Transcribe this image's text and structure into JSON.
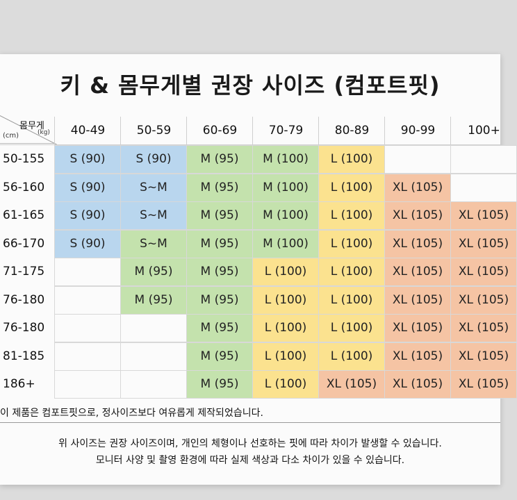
{
  "title": "키 & 몸무게별 권장 사이즈 (컴포트핏)",
  "corner": {
    "weight_label": "몸무게",
    "weight_unit": "(kg)",
    "height_unit": "(cm)"
  },
  "columns": [
    "40-49",
    "50-59",
    "60-69",
    "70-79",
    "80-89",
    "90-99",
    "100+"
  ],
  "rows": [
    {
      "height": "50-155",
      "cells": [
        {
          "text": "S (90)",
          "color": "blue"
        },
        {
          "text": "S (90)",
          "color": "blue"
        },
        {
          "text": "M (95)",
          "color": "green"
        },
        {
          "text": "M (100)",
          "color": "green"
        },
        {
          "text": "L (100)",
          "color": "yellow"
        },
        {
          "text": "",
          "color": "empty"
        },
        {
          "text": "",
          "color": "empty"
        }
      ]
    },
    {
      "height": "56-160",
      "cells": [
        {
          "text": "S (90)",
          "color": "blue"
        },
        {
          "text": "S~M",
          "color": "blue"
        },
        {
          "text": "M (95)",
          "color": "green"
        },
        {
          "text": "M (100)",
          "color": "green"
        },
        {
          "text": "L (100)",
          "color": "yellow"
        },
        {
          "text": "XL (105)",
          "color": "orange"
        },
        {
          "text": "",
          "color": "empty"
        }
      ]
    },
    {
      "height": "61-165",
      "cells": [
        {
          "text": "S (90)",
          "color": "blue"
        },
        {
          "text": "S~M",
          "color": "blue"
        },
        {
          "text": "M (95)",
          "color": "green"
        },
        {
          "text": "M (100)",
          "color": "green"
        },
        {
          "text": "L (100)",
          "color": "yellow"
        },
        {
          "text": "XL (105)",
          "color": "orange"
        },
        {
          "text": "XL (105)",
          "color": "orange"
        }
      ]
    },
    {
      "height": "66-170",
      "cells": [
        {
          "text": "S (90)",
          "color": "blue"
        },
        {
          "text": "S~M",
          "color": "green"
        },
        {
          "text": "M (95)",
          "color": "green"
        },
        {
          "text": "M (100)",
          "color": "green"
        },
        {
          "text": "L (100)",
          "color": "yellow"
        },
        {
          "text": "XL (105)",
          "color": "orange"
        },
        {
          "text": "XL (105)",
          "color": "orange"
        }
      ]
    },
    {
      "height": "71-175",
      "cells": [
        {
          "text": "",
          "color": "empty"
        },
        {
          "text": "M (95)",
          "color": "green"
        },
        {
          "text": "M (95)",
          "color": "green"
        },
        {
          "text": "L (100)",
          "color": "yellow"
        },
        {
          "text": "L (100)",
          "color": "yellow"
        },
        {
          "text": "XL (105)",
          "color": "orange"
        },
        {
          "text": "XL (105)",
          "color": "orange"
        }
      ]
    },
    {
      "height": "76-180",
      "cells": [
        {
          "text": "",
          "color": "empty"
        },
        {
          "text": "M (95)",
          "color": "green"
        },
        {
          "text": "M (95)",
          "color": "green"
        },
        {
          "text": "L (100)",
          "color": "yellow"
        },
        {
          "text": "L (100)",
          "color": "yellow"
        },
        {
          "text": "XL (105)",
          "color": "orange"
        },
        {
          "text": "XL (105)",
          "color": "orange"
        }
      ]
    },
    {
      "height": "76-180",
      "cells": [
        {
          "text": "",
          "color": "empty"
        },
        {
          "text": "",
          "color": "empty"
        },
        {
          "text": "M (95)",
          "color": "green"
        },
        {
          "text": "L (100)",
          "color": "yellow"
        },
        {
          "text": "L (100)",
          "color": "yellow"
        },
        {
          "text": "XL (105)",
          "color": "orange"
        },
        {
          "text": "XL (105)",
          "color": "orange"
        }
      ]
    },
    {
      "height": "81-185",
      "cells": [
        {
          "text": "",
          "color": "empty"
        },
        {
          "text": "",
          "color": "empty"
        },
        {
          "text": "M (95)",
          "color": "green"
        },
        {
          "text": "L (100)",
          "color": "yellow"
        },
        {
          "text": "L (100)",
          "color": "yellow"
        },
        {
          "text": "XL (105)",
          "color": "orange"
        },
        {
          "text": "XL (105)",
          "color": "orange"
        }
      ]
    },
    {
      "height": "186+",
      "cells": [
        {
          "text": "",
          "color": "empty"
        },
        {
          "text": "",
          "color": "empty"
        },
        {
          "text": "M (95)",
          "color": "green"
        },
        {
          "text": "L (100)",
          "color": "yellow"
        },
        {
          "text": "XL (105)",
          "color": "orange"
        },
        {
          "text": "XL (105)",
          "color": "orange"
        },
        {
          "text": "XL (105)",
          "color": "orange"
        }
      ]
    }
  ],
  "notes": {
    "line1": "이 제품은 컴포트핏으로, 정사이즈보다 여유롭게 제작되었습니다.",
    "line2": "위 사이즈는 권장 사이즈이며, 개인의 체형이나 선호하는 핏에 따라 차이가 발생할 수 있습니다.",
    "line3": "모니터 사양 및 촬영 환경에 따라 실제 색상과 다소 차이가 있을 수 있습니다."
  },
  "colors": {
    "blue": "#b9d6ee",
    "green": "#c4e2ad",
    "yellow": "#fbe28f",
    "orange": "#f5c4a4",
    "empty": "#fbfbfb"
  }
}
